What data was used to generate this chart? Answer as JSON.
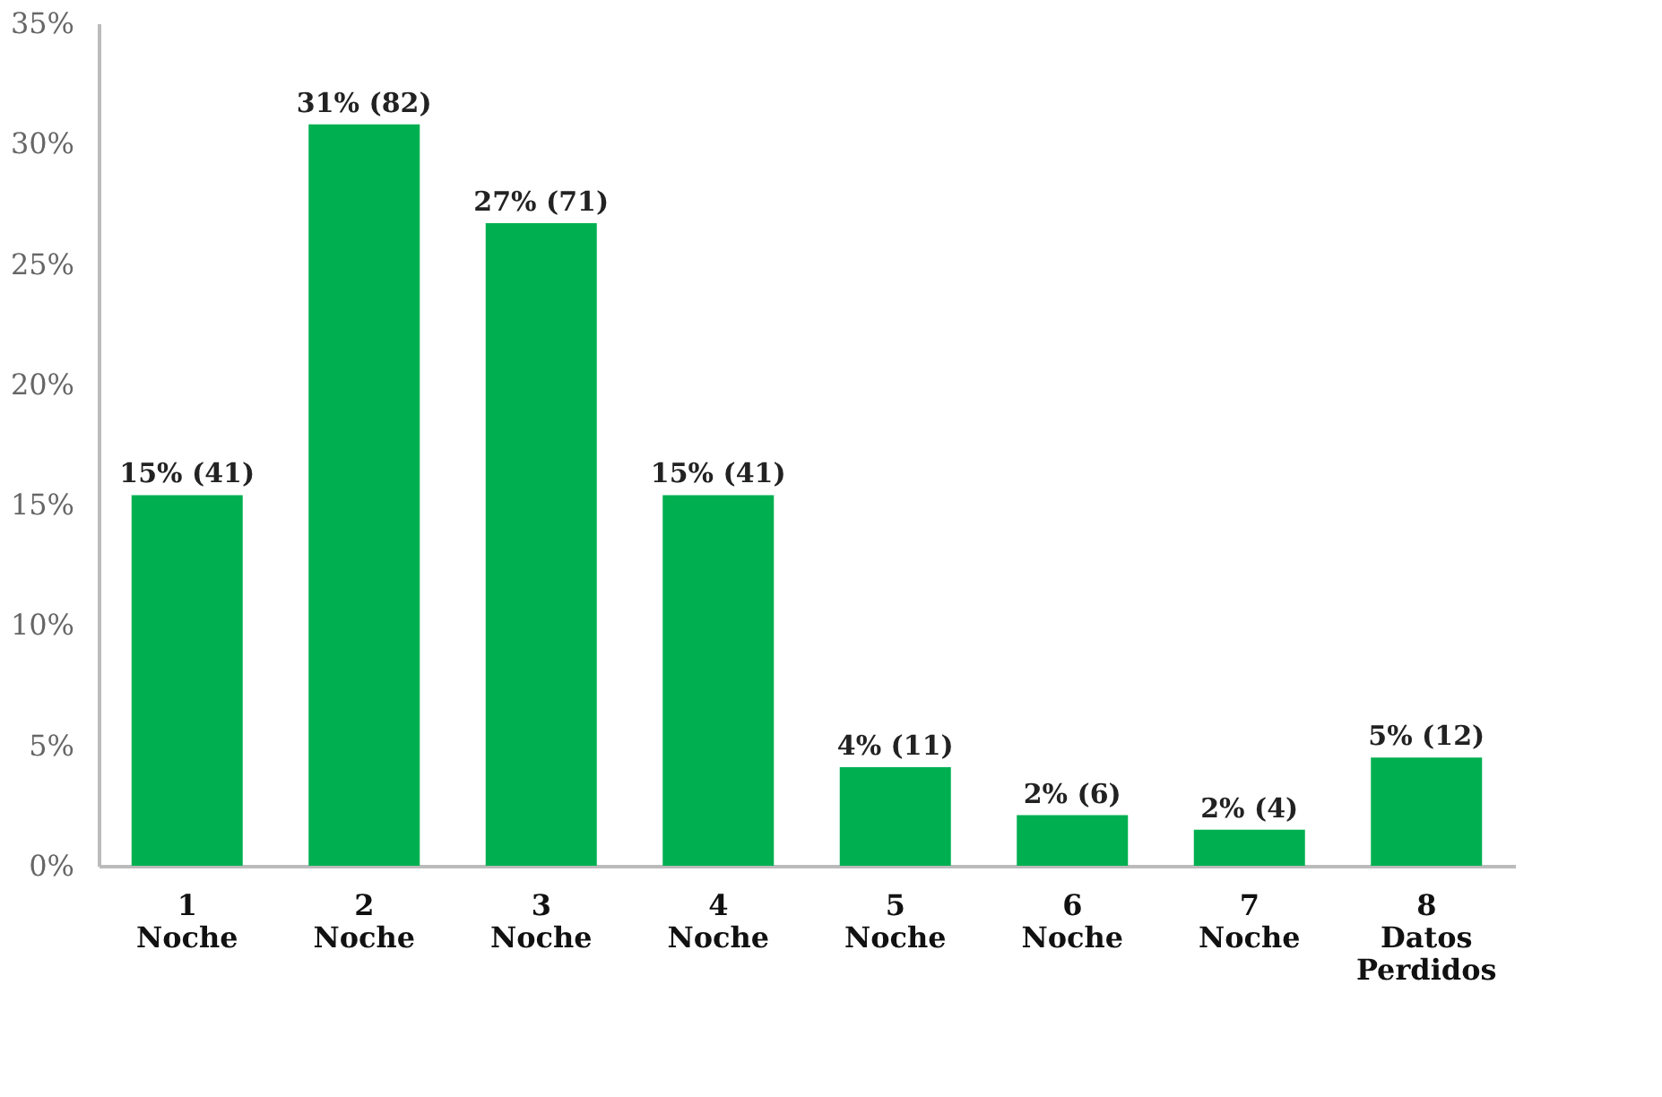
{
  "chart_data": {
    "type": "bar",
    "categories": [
      "1\nNoche",
      "2\nNoche",
      "3\nNoche",
      "4\nNoche",
      "5\nNoche",
      "6\nNoche",
      "7\nNoche",
      "8\nDatos\nPerdidos"
    ],
    "values": [
      15.4,
      30.8,
      26.7,
      15.4,
      4.1,
      2.1,
      1.5,
      4.5
    ],
    "value_labels": [
      "15% (41)",
      "31% (82)",
      "27% (71)",
      "15% (41)",
      "4% (11)",
      "2% (6)",
      "2% (4)",
      "5% (12)"
    ],
    "color": "#00b050",
    "ylim": [
      0,
      35
    ],
    "yticks": [
      {
        "value": 0,
        "label": "0%"
      },
      {
        "value": 5,
        "label": "5%"
      },
      {
        "value": 10,
        "label": "10%"
      },
      {
        "value": 15,
        "label": "15%"
      },
      {
        "value": 20,
        "label": "20%"
      },
      {
        "value": 25,
        "label": "25%"
      },
      {
        "value": 30,
        "label": "30%"
      },
      {
        "value": 35,
        "label": "35%"
      }
    ],
    "grid": false
  }
}
